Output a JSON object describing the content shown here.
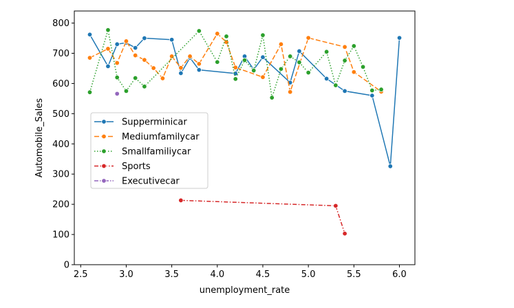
{
  "chart_data": {
    "type": "line",
    "title": "",
    "xlabel": "unemployment_rate",
    "ylabel": "Automobile_Sales",
    "xlim": [
      2.43,
      6.17
    ],
    "ylim": [
      0,
      840
    ],
    "xticks": [
      2.5,
      3.0,
      3.5,
      4.0,
      4.5,
      5.0,
      5.5,
      6.0
    ],
    "xtick_labels": [
      "2.5",
      "3.0",
      "3.5",
      "4.0",
      "4.5",
      "5.0",
      "5.5",
      "6.0"
    ],
    "yticks": [
      0,
      100,
      200,
      300,
      400,
      500,
      600,
      700,
      800
    ],
    "ytick_labels": [
      "0",
      "100",
      "200",
      "300",
      "400",
      "500",
      "600",
      "700",
      "800"
    ],
    "grid": false,
    "legend_position": "center-left",
    "series": [
      {
        "name": "Supperminicar",
        "color": "#1f77b4",
        "dash": "solid",
        "points": [
          {
            "x": 2.6,
            "y": 762
          },
          {
            "x": 2.8,
            "y": 657
          },
          {
            "x": 2.9,
            "y": 730
          },
          {
            "x": 3.0,
            "y": 735
          },
          {
            "x": 3.1,
            "y": 718
          },
          {
            "x": 3.2,
            "y": 750
          },
          {
            "x": 3.5,
            "y": 745
          },
          {
            "x": 3.6,
            "y": 634
          },
          {
            "x": 3.7,
            "y": 685
          },
          {
            "x": 3.8,
            "y": 645
          },
          {
            "x": 4.2,
            "y": 633
          },
          {
            "x": 4.3,
            "y": 690
          },
          {
            "x": 4.4,
            "y": 646
          },
          {
            "x": 4.5,
            "y": 687
          },
          {
            "x": 4.8,
            "y": 603
          },
          {
            "x": 4.9,
            "y": 707
          },
          {
            "x": 5.2,
            "y": 616
          },
          {
            "x": 5.4,
            "y": 575
          },
          {
            "x": 5.7,
            "y": 560
          },
          {
            "x": 5.9,
            "y": 326
          },
          {
            "x": 6.0,
            "y": 751
          }
        ]
      },
      {
        "name": "Mediumfamilycar",
        "color": "#ff7f0e",
        "dash": "dashed",
        "points": [
          {
            "x": 2.6,
            "y": 685
          },
          {
            "x": 2.8,
            "y": 715
          },
          {
            "x": 2.9,
            "y": 668
          },
          {
            "x": 3.0,
            "y": 740
          },
          {
            "x": 3.1,
            "y": 693
          },
          {
            "x": 3.2,
            "y": 678
          },
          {
            "x": 3.3,
            "y": 651
          },
          {
            "x": 3.4,
            "y": 617
          },
          {
            "x": 3.5,
            "y": 690
          },
          {
            "x": 3.6,
            "y": 652
          },
          {
            "x": 3.7,
            "y": 690
          },
          {
            "x": 3.8,
            "y": 665
          },
          {
            "x": 4.0,
            "y": 765
          },
          {
            "x": 4.1,
            "y": 737
          },
          {
            "x": 4.2,
            "y": 653
          },
          {
            "x": 4.5,
            "y": 621
          },
          {
            "x": 4.7,
            "y": 730
          },
          {
            "x": 4.8,
            "y": 572
          },
          {
            "x": 5.0,
            "y": 751
          },
          {
            "x": 5.4,
            "y": 721
          },
          {
            "x": 5.5,
            "y": 638
          },
          {
            "x": 5.8,
            "y": 573
          }
        ]
      },
      {
        "name": "Smallfamiliycar",
        "color": "#2ca02c",
        "dash": "dotted",
        "points": [
          {
            "x": 2.6,
            "y": 571
          },
          {
            "x": 2.8,
            "y": 777
          },
          {
            "x": 2.9,
            "y": 620
          },
          {
            "x": 3.0,
            "y": 575
          },
          {
            "x": 3.1,
            "y": 618
          },
          {
            "x": 3.2,
            "y": 590
          },
          {
            "x": 3.8,
            "y": 774
          },
          {
            "x": 4.0,
            "y": 671
          },
          {
            "x": 4.1,
            "y": 756
          },
          {
            "x": 4.2,
            "y": 615
          },
          {
            "x": 4.3,
            "y": 677
          },
          {
            "x": 4.4,
            "y": 643
          },
          {
            "x": 4.5,
            "y": 760
          },
          {
            "x": 4.6,
            "y": 553
          },
          {
            "x": 4.7,
            "y": 648
          },
          {
            "x": 4.8,
            "y": 690
          },
          {
            "x": 4.9,
            "y": 670
          },
          {
            "x": 5.0,
            "y": 636
          },
          {
            "x": 5.2,
            "y": 705
          },
          {
            "x": 5.3,
            "y": 594
          },
          {
            "x": 5.4,
            "y": 676
          },
          {
            "x": 5.5,
            "y": 724
          },
          {
            "x": 5.6,
            "y": 655
          },
          {
            "x": 5.7,
            "y": 577
          },
          {
            "x": 5.8,
            "y": 580
          }
        ]
      },
      {
        "name": "Sports",
        "color": "#d62728",
        "dash": "dashdot",
        "points": [
          {
            "x": 3.6,
            "y": 213
          },
          {
            "x": 5.3,
            "y": 195
          },
          {
            "x": 5.4,
            "y": 103
          }
        ]
      },
      {
        "name": "Executivecar",
        "color": "#9467bd",
        "dash": "dashdotdot",
        "points": [
          {
            "x": 2.9,
            "y": 566
          }
        ]
      }
    ]
  }
}
